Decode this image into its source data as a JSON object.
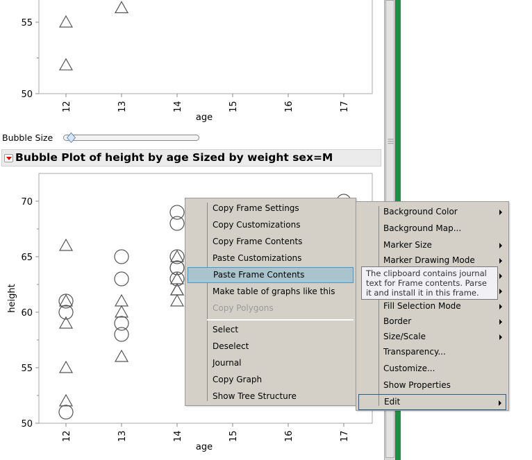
{
  "top_plot": {
    "y_ticks": [
      "50",
      "55"
    ],
    "x_ticks": [
      "12",
      "13",
      "14",
      "15",
      "16",
      "17"
    ],
    "xlabel": "age",
    "points": [
      {
        "age": 12,
        "height": 55,
        "marker": "triangle"
      },
      {
        "age": 12,
        "height": 52,
        "marker": "triangle"
      },
      {
        "age": 13,
        "height": 56,
        "marker": "triangle"
      }
    ]
  },
  "bubble_size": {
    "label": "Bubble Size",
    "value_fraction": 0.05
  },
  "outline": {
    "title": "Bubble Plot of height by age Sized by weight sex=M",
    "icon": "red-disclosure-triangle",
    "color": "#dd0000"
  },
  "chart_data": {
    "type": "scatter",
    "title": "",
    "xlabel": "age",
    "ylabel": "height",
    "xlim": [
      11.5,
      17.5
    ],
    "ylim": [
      50,
      72.5
    ],
    "x_ticks": [
      "12",
      "13",
      "14",
      "15",
      "16",
      "17"
    ],
    "y_ticks": [
      "50",
      "55",
      "60",
      "65",
      "70"
    ],
    "points": [
      {
        "age": 12,
        "height": 66,
        "marker": "triangle"
      },
      {
        "age": 12,
        "height": 61,
        "marker": "circle"
      },
      {
        "age": 12,
        "height": 61,
        "marker": "triangle"
      },
      {
        "age": 12,
        "height": 60,
        "marker": "circle"
      },
      {
        "age": 12,
        "height": 59,
        "marker": "triangle"
      },
      {
        "age": 12,
        "height": 55,
        "marker": "triangle"
      },
      {
        "age": 12,
        "height": 52,
        "marker": "triangle"
      },
      {
        "age": 12,
        "height": 51,
        "marker": "circle"
      },
      {
        "age": 13,
        "height": 65,
        "marker": "circle"
      },
      {
        "age": 13,
        "height": 63,
        "marker": "circle"
      },
      {
        "age": 13,
        "height": 61,
        "marker": "triangle"
      },
      {
        "age": 13,
        "height": 60,
        "marker": "triangle"
      },
      {
        "age": 13,
        "height": 59,
        "marker": "circle"
      },
      {
        "age": 13,
        "height": 58,
        "marker": "circle"
      },
      {
        "age": 13,
        "height": 56,
        "marker": "triangle"
      },
      {
        "age": 14,
        "height": 69,
        "marker": "circle"
      },
      {
        "age": 14,
        "height": 68,
        "marker": "circle"
      },
      {
        "age": 14,
        "height": 65,
        "marker": "circle"
      },
      {
        "age": 14,
        "height": 65,
        "marker": "triangle"
      },
      {
        "age": 14,
        "height": 64,
        "marker": "circle"
      },
      {
        "age": 14,
        "height": 64,
        "marker": "circle"
      },
      {
        "age": 14,
        "height": 63,
        "marker": "circle"
      },
      {
        "age": 14,
        "height": 63,
        "marker": "triangle"
      },
      {
        "age": 14,
        "height": 62,
        "marker": "triangle"
      },
      {
        "age": 14,
        "height": 62,
        "marker": "triangle"
      },
      {
        "age": 14,
        "height": 61,
        "marker": "triangle"
      },
      {
        "age": 17,
        "height": 70,
        "marker": "circle"
      }
    ]
  },
  "context_menu": {
    "items": [
      {
        "label": "Copy Frame Settings"
      },
      {
        "label": "Copy Customizations"
      },
      {
        "label": "Copy Frame Contents"
      },
      {
        "label": "Paste Customizations"
      },
      {
        "label": "Paste Frame Contents",
        "highlighted": true
      },
      {
        "label": "Make table of graphs like this"
      },
      {
        "label": "Copy Polygons",
        "disabled": true
      }
    ],
    "items2": [
      {
        "label": "Select"
      },
      {
        "label": "Deselect"
      },
      {
        "label": "Journal"
      },
      {
        "label": "Copy Graph"
      },
      {
        "label": "Show Tree Structure"
      }
    ]
  },
  "submenu": {
    "items": [
      {
        "label": "Background Color",
        "submenu": true
      },
      {
        "label": "Background Map...",
        "submenu": false
      },
      {
        "label": "Marker Size",
        "submenu": true
      },
      {
        "label": "Marker Drawing Mode",
        "submenu": true
      },
      {
        "label": "",
        "submenu": true
      },
      {
        "label": "",
        "submenu": true
      },
      {
        "label": "Fill Selection Mode",
        "submenu": true
      },
      {
        "label": "Border",
        "submenu": true
      },
      {
        "label": "Size/Scale",
        "submenu": true
      },
      {
        "label": "Transparency...",
        "submenu": false
      },
      {
        "label": "Customize...",
        "submenu": false
      },
      {
        "label": "Show Properties",
        "submenu": false
      },
      {
        "label": "Edit",
        "submenu": true,
        "highlighted": true
      }
    ]
  },
  "tooltip": {
    "text": "The clipboard contains journal text for Frame contents. Parse it and install it in this frame."
  }
}
